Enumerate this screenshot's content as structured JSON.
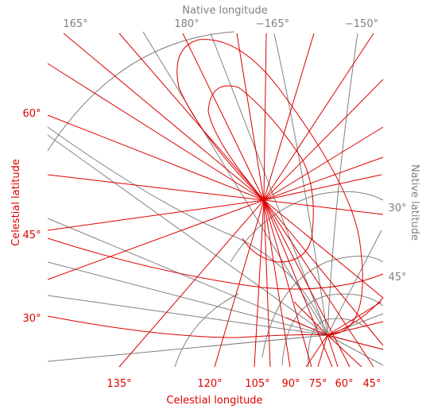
{
  "titles": {
    "native_longitude": "Native longitude",
    "native_latitude": "Native latitude",
    "celestial_latitude": "Celestial latitude",
    "celestial_longitude": "Celestial longitude"
  },
  "native_longitude_ticks": [
    "165°",
    "180°",
    "−165°",
    "−150°"
  ],
  "native_latitude_ticks": [
    "30°",
    "45°"
  ],
  "celestial_latitude_ticks": [
    "60°",
    "45°",
    "30°"
  ],
  "celestial_longitude_ticks": [
    "135°",
    "120°",
    "105°",
    "90°",
    "75°",
    "60°",
    "45°"
  ],
  "colors": {
    "celestial_grid": "#dd0000",
    "native_grid": "#808080"
  }
}
